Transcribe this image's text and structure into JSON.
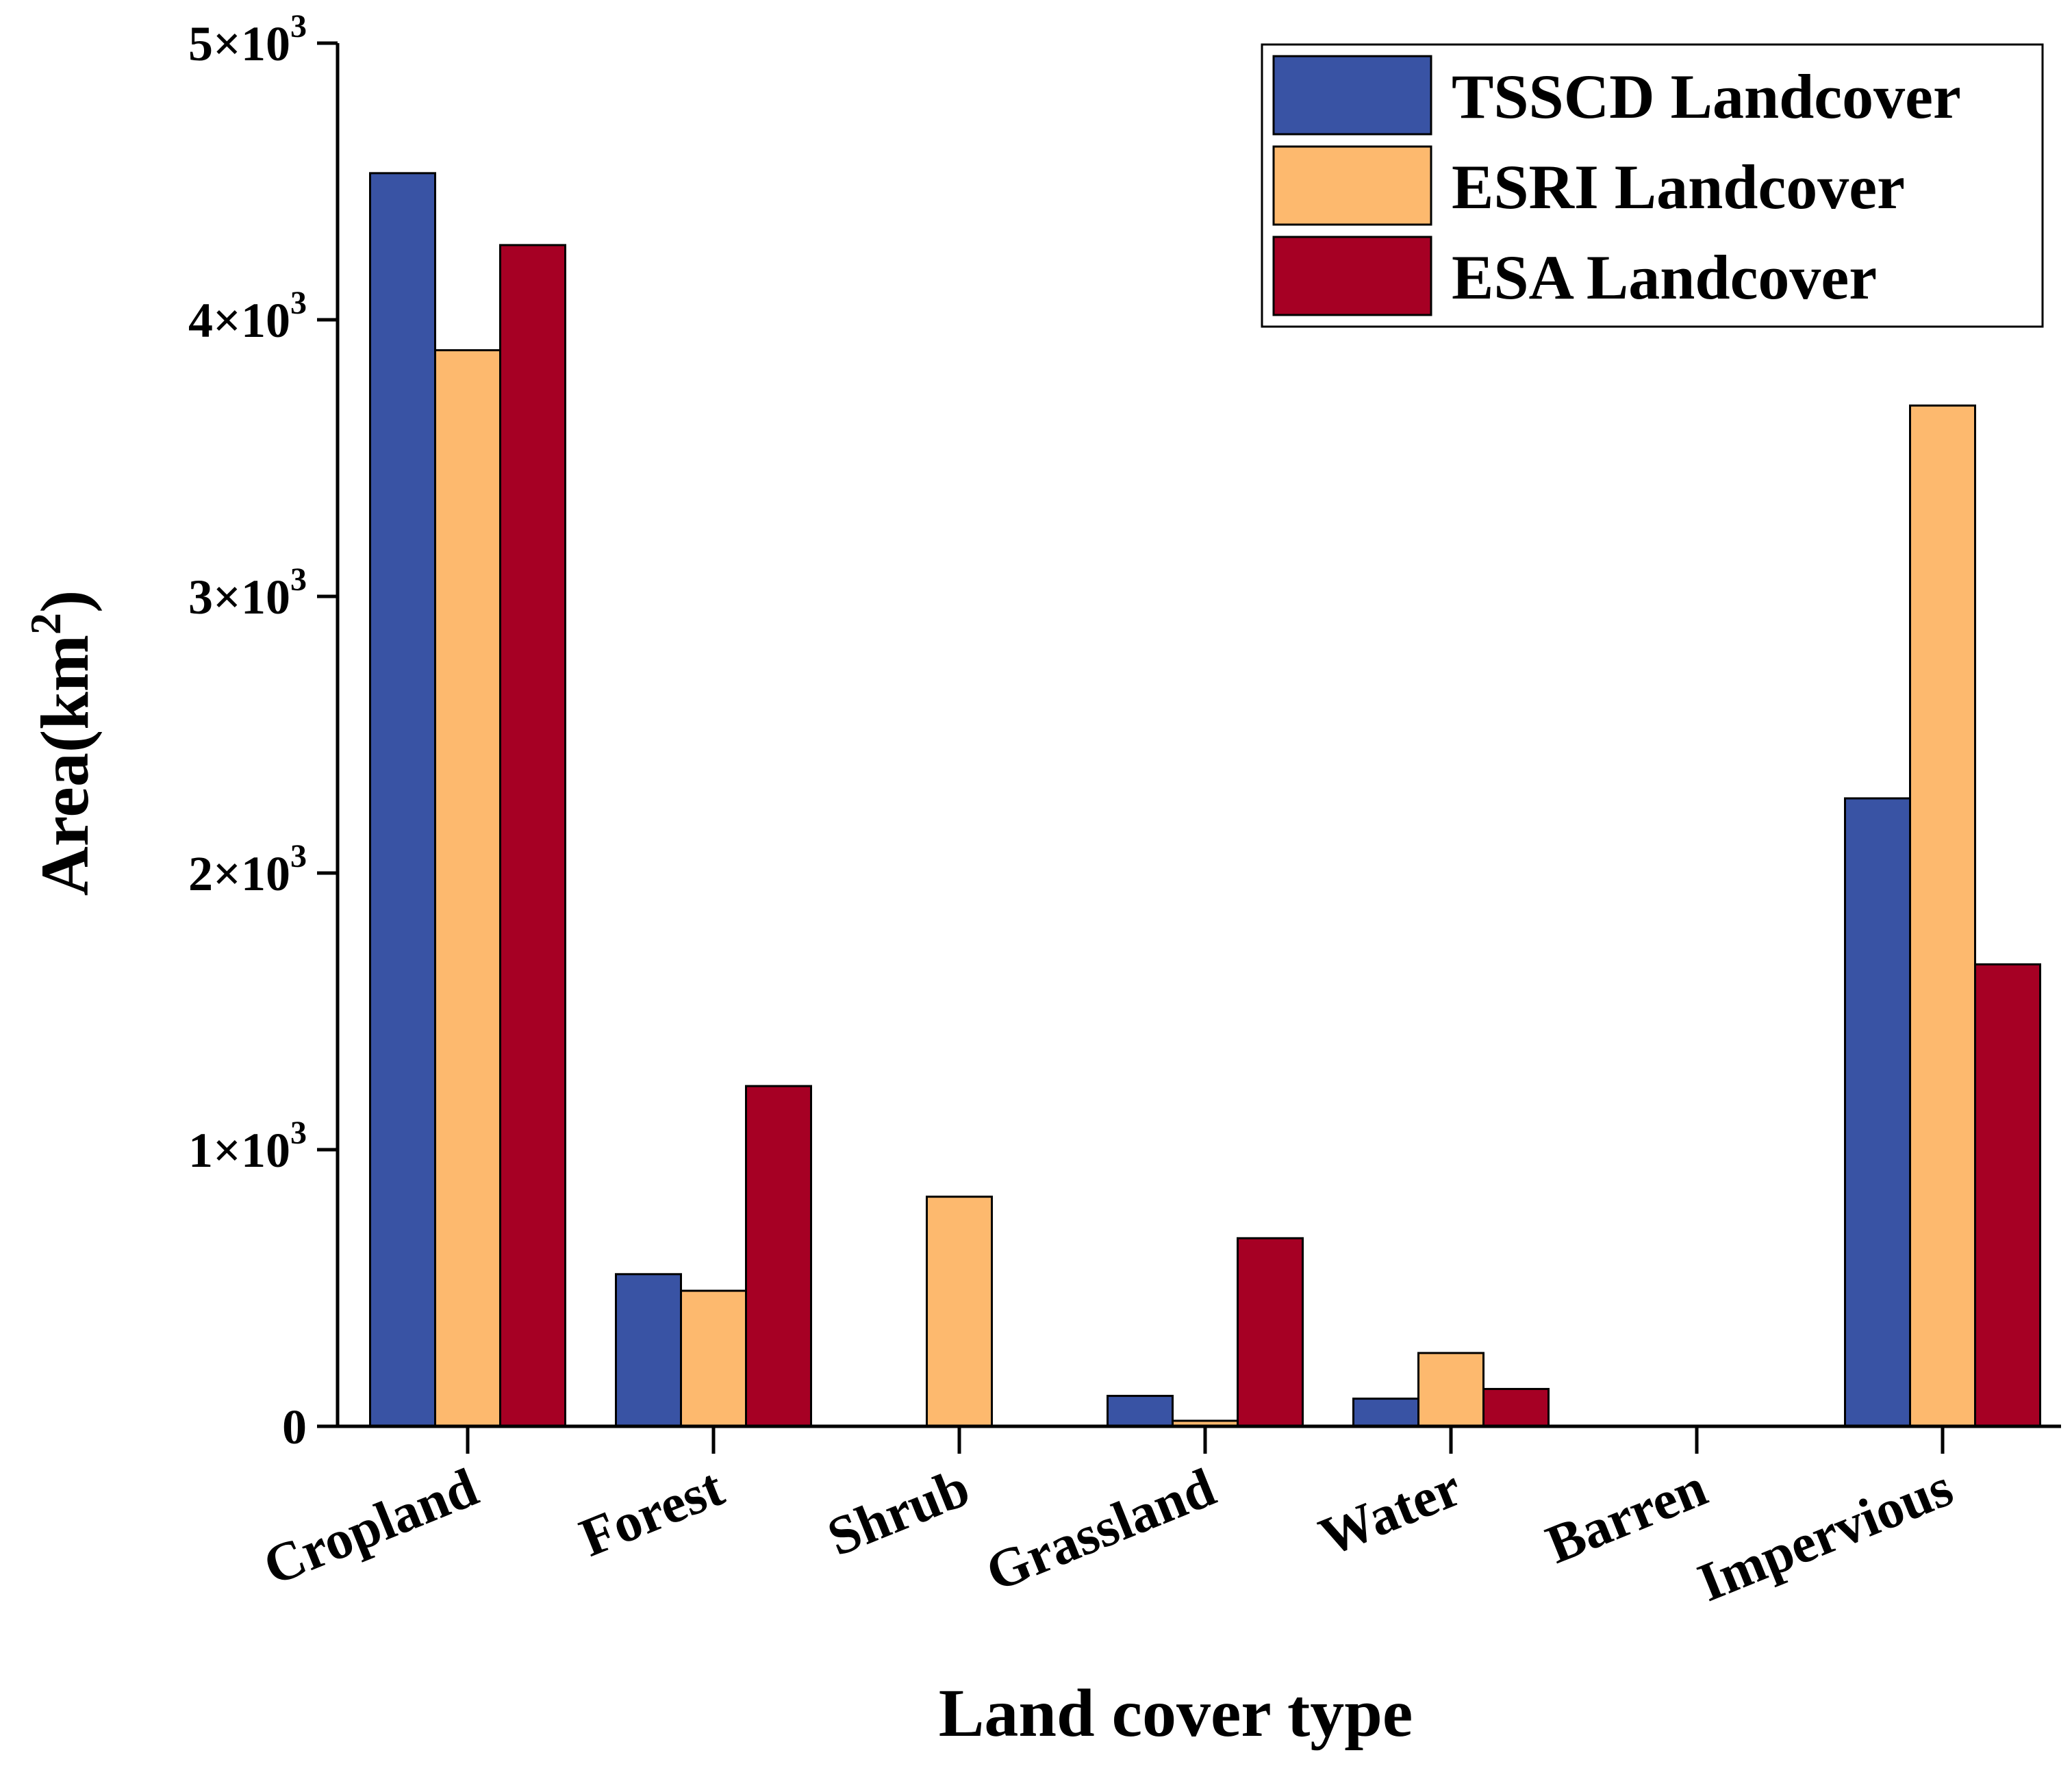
{
  "chart_data": {
    "type": "bar",
    "title": "",
    "xlabel": "Land cover type",
    "ylabel": "Area(km²)",
    "ylabel_parts": {
      "base": "Area(km",
      "sup": "2",
      "end": ")"
    },
    "ylim": [
      0,
      5000
    ],
    "yticks": [
      {
        "value": 0,
        "base": "0",
        "exp": ""
      },
      {
        "value": 1000,
        "base": "1×10",
        "exp": "3"
      },
      {
        "value": 2000,
        "base": "2×10",
        "exp": "3"
      },
      {
        "value": 3000,
        "base": "3×10",
        "exp": "3"
      },
      {
        "value": 4000,
        "base": "4×10",
        "exp": "3"
      },
      {
        "value": 5000,
        "base": "5×10",
        "exp": "3"
      }
    ],
    "categories": [
      "Cropland",
      "Forest",
      "Shrub",
      "Grassland",
      "Water",
      "Barren",
      "Impervious"
    ],
    "series": [
      {
        "name": "TSSCD Landcover",
        "color": "#3953a4",
        "values": [
          4530,
          550,
          0,
          110,
          100,
          0,
          2270
        ]
      },
      {
        "name": "ESRI Landcover",
        "color": "#fdb96e",
        "values": [
          3890,
          490,
          830,
          20,
          265,
          0,
          3690
        ]
      },
      {
        "name": "ESA Landcover",
        "color": "#a60024",
        "values": [
          4270,
          1230,
          0,
          680,
          135,
          0,
          1670
        ]
      }
    ],
    "legend_position": "top-right",
    "grid": false
  }
}
